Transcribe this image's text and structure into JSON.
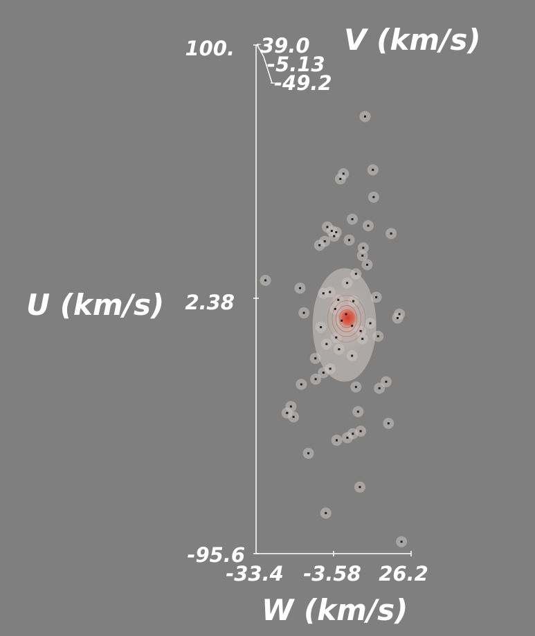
{
  "chart_data": {
    "type": "scatter",
    "title": "",
    "axes": {
      "u": {
        "label": "U (km/s)",
        "ticks": [
          "100.",
          "2.38",
          "-95.6"
        ],
        "range": [
          -95.6,
          100
        ]
      },
      "w": {
        "label": "W (km/s)",
        "ticks": [
          "-33.4",
          "-3.58",
          "26.2"
        ],
        "range": [
          -33.4,
          26.2
        ]
      },
      "v": {
        "label": "V (km/s)",
        "ticks": [
          "39.0",
          "-5.13",
          "-49.2"
        ],
        "range": [
          -49.2,
          39.0
        ]
      }
    },
    "colors": {
      "background": "#7f7f7f",
      "axis": "#ffffff",
      "density_outer": "#c9c3c0",
      "density_core": "#d23a2a",
      "point": "#1e1e1e"
    },
    "density_peak": {
      "w": 1.9,
      "u": -5.0
    },
    "points": [
      {
        "w": 8.5,
        "u": 72.5
      },
      {
        "w": 0.2,
        "u": 50.5
      },
      {
        "w": -1.0,
        "u": 48.5
      },
      {
        "w": 11.5,
        "u": 52.0
      },
      {
        "w": 11.8,
        "u": 41.5
      },
      {
        "w": 3.6,
        "u": 33.0
      },
      {
        "w": -6.0,
        "u": 30.0
      },
      {
        "w": -4.3,
        "u": 28.5
      },
      {
        "w": -2.6,
        "u": 28.0
      },
      {
        "w": -7.0,
        "u": 24.5
      },
      {
        "w": -3.4,
        "u": 26.5
      },
      {
        "w": 9.7,
        "u": 30.5
      },
      {
        "w": 18.5,
        "u": 27.5
      },
      {
        "w": 2.4,
        "u": 25.0
      },
      {
        "w": 7.8,
        "u": 22.0
      },
      {
        "w": -9.0,
        "u": 23.0
      },
      {
        "w": 7.5,
        "u": 19.0
      },
      {
        "w": 5.0,
        "u": 12.0
      },
      {
        "w": 9.3,
        "u": 15.5
      },
      {
        "w": -29.8,
        "u": 9.5
      },
      {
        "w": -16.5,
        "u": 6.5
      },
      {
        "w": -7.5,
        "u": 4.5
      },
      {
        "w": -5.0,
        "u": 5.0
      },
      {
        "w": 1.6,
        "u": 8.5
      },
      {
        "w": -1.8,
        "u": 2.0
      },
      {
        "w": -3.0,
        "u": -1.5
      },
      {
        "w": 4.0,
        "u": 1.5
      },
      {
        "w": 1.2,
        "u": -3.5
      },
      {
        "w": -0.5,
        "u": -6.0
      },
      {
        "w": 3.5,
        "u": -8.0
      },
      {
        "w": 6.8,
        "u": -10.0
      },
      {
        "w": -2.6,
        "u": -12.5
      },
      {
        "w": -1.5,
        "u": -17.0
      },
      {
        "w": 3.5,
        "u": -19.5
      },
      {
        "w": -8.5,
        "u": -8.5
      },
      {
        "w": -6.3,
        "u": -15.0
      },
      {
        "w": -10.6,
        "u": -20.5
      },
      {
        "w": 7.5,
        "u": -13.0
      },
      {
        "w": 10.5,
        "u": -7.0
      },
      {
        "w": 13.5,
        "u": -12.0
      },
      {
        "w": 12.8,
        "u": 3.0
      },
      {
        "w": 21.0,
        "u": -5.0
      },
      {
        "w": 21.7,
        "u": -3.5
      },
      {
        "w": -15.0,
        "u": -3.0
      },
      {
        "w": -7.5,
        "u": -26.0
      },
      {
        "w": -4.9,
        "u": -24.5
      },
      {
        "w": 5.0,
        "u": -31.5
      },
      {
        "w": 5.8,
        "u": -41.0
      },
      {
        "w": 14.0,
        "u": -32.0
      },
      {
        "w": 16.6,
        "u": -29.5
      },
      {
        "w": -16.0,
        "u": -30.5
      },
      {
        "w": -10.5,
        "u": -28.5
      },
      {
        "w": -20.0,
        "u": -39.0
      },
      {
        "w": -21.5,
        "u": -41.5
      },
      {
        "w": -19.0,
        "u": -43.0
      },
      {
        "w": 17.5,
        "u": -45.5
      },
      {
        "w": 1.7,
        "u": -51.0
      },
      {
        "w": 6.8,
        "u": -48.5
      },
      {
        "w": 3.8,
        "u": -49.5
      },
      {
        "w": -13.3,
        "u": -57.0
      },
      {
        "w": -2.4,
        "u": -52.0
      },
      {
        "w": 6.5,
        "u": -70.0
      },
      {
        "w": -6.6,
        "u": -80.0
      },
      {
        "w": 22.5,
        "u": -91.0
      }
    ]
  }
}
